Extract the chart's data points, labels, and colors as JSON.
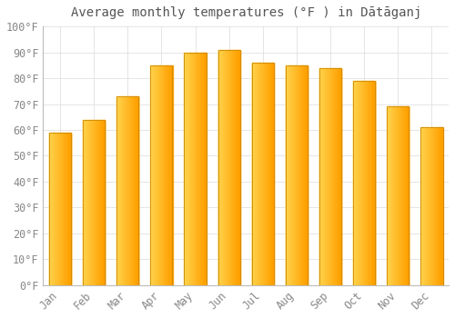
{
  "title": "Average monthly temperatures (°F ) in Dātāganj",
  "months": [
    "Jan",
    "Feb",
    "Mar",
    "Apr",
    "May",
    "Jun",
    "Jul",
    "Aug",
    "Sep",
    "Oct",
    "Nov",
    "Dec"
  ],
  "values": [
    59,
    64,
    73,
    85,
    90,
    91,
    86,
    85,
    84,
    79,
    69,
    61
  ],
  "bar_color_left": "#FFD54F",
  "bar_color_right": "#FFA000",
  "bar_edge_color": "#CC8800",
  "background_color": "#FFFFFF",
  "grid_color": "#E0E0E0",
  "tick_label_color": "#888888",
  "title_color": "#555555",
  "ylim": [
    0,
    100
  ],
  "yticks": [
    0,
    10,
    20,
    30,
    40,
    50,
    60,
    70,
    80,
    90,
    100
  ],
  "ytick_labels": [
    "0°F",
    "10°F",
    "20°F",
    "30°F",
    "40°F",
    "50°F",
    "60°F",
    "70°F",
    "80°F",
    "90°F",
    "100°F"
  ],
  "title_fontsize": 10,
  "tick_fontsize": 8.5,
  "bar_width": 0.65,
  "gradient_steps": 100
}
